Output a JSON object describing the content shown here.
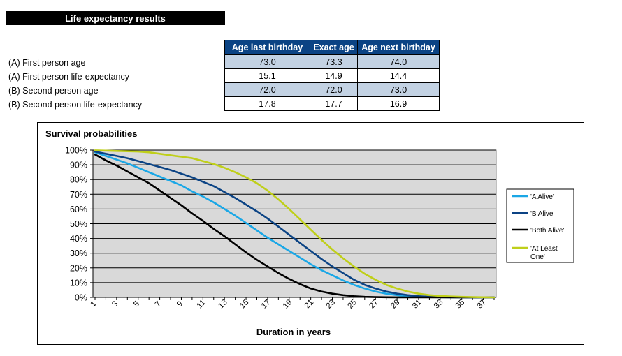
{
  "sheet_title": "Life expectancy results",
  "table": {
    "columns": [
      "Age last birthday",
      "Exact age",
      "Age next birthday"
    ],
    "rows": [
      {
        "label": "(A) First person age",
        "values": [
          "73.0",
          "73.3",
          "74.0"
        ]
      },
      {
        "label": "(A) First person life-expectancy",
        "values": [
          "15.1",
          "14.9",
          "14.4"
        ]
      },
      {
        "label": "(B) Second person age",
        "values": [
          "72.0",
          "72.0",
          "73.0"
        ]
      },
      {
        "label": "(B) Second person life-expectancy",
        "values": [
          "17.8",
          "17.7",
          "16.9"
        ]
      }
    ]
  },
  "colors": {
    "header_bg": "#0b4384",
    "shaded_row": "#c3d2e3",
    "plot_bg": "#d9d9d9"
  },
  "chart_data": {
    "type": "line",
    "title": "Survival probabilities",
    "xlabel": "Duration in years",
    "ylabel": "",
    "x": [
      1,
      2,
      3,
      4,
      5,
      6,
      7,
      8,
      9,
      10,
      11,
      12,
      13,
      14,
      15,
      16,
      17,
      18,
      19,
      20,
      21,
      22,
      23,
      24,
      25,
      26,
      27,
      28,
      29,
      30,
      31,
      32,
      33,
      34,
      35,
      36,
      37,
      38
    ],
    "x_tick_labels": [
      "1",
      "3",
      "5",
      "7",
      "9",
      "11",
      "13",
      "15",
      "17",
      "19",
      "21",
      "23",
      "25",
      "27",
      "29",
      "31",
      "33",
      "35",
      "37"
    ],
    "y_tick_labels": [
      "0%",
      "10%",
      "20%",
      "30%",
      "40%",
      "50%",
      "60%",
      "70%",
      "80%",
      "90%",
      "100%"
    ],
    "ylim": [
      0,
      1
    ],
    "grid": true,
    "legend_position": "right",
    "series": [
      {
        "name": "'A Alive'",
        "color": "#1aa7e6",
        "values": [
          0.985,
          0.96,
          0.935,
          0.91,
          0.88,
          0.85,
          0.82,
          0.79,
          0.76,
          0.72,
          0.685,
          0.645,
          0.6,
          0.555,
          0.505,
          0.455,
          0.405,
          0.36,
          0.315,
          0.27,
          0.225,
          0.185,
          0.15,
          0.115,
          0.085,
          0.06,
          0.04,
          0.025,
          0.015,
          0.008,
          0.004,
          0.002,
          0.001,
          0.0005,
          0.0002,
          0.0001,
          0.0,
          0.0
        ]
      },
      {
        "name": "'B Alive'",
        "color": "#0b4384",
        "values": [
          0.99,
          0.975,
          0.96,
          0.945,
          0.925,
          0.905,
          0.885,
          0.865,
          0.84,
          0.815,
          0.785,
          0.755,
          0.715,
          0.675,
          0.63,
          0.585,
          0.535,
          0.48,
          0.425,
          0.37,
          0.315,
          0.26,
          0.21,
          0.165,
          0.12,
          0.085,
          0.06,
          0.04,
          0.025,
          0.015,
          0.008,
          0.004,
          0.002,
          0.001,
          0.0005,
          0.0002,
          0.0001,
          0.0
        ]
      },
      {
        "name": "'Both Alive'",
        "color": "#000000",
        "values": [
          0.97,
          0.93,
          0.895,
          0.855,
          0.815,
          0.775,
          0.725,
          0.675,
          0.625,
          0.57,
          0.52,
          0.465,
          0.415,
          0.36,
          0.305,
          0.255,
          0.21,
          0.165,
          0.125,
          0.09,
          0.06,
          0.04,
          0.025,
          0.015,
          0.008,
          0.004,
          0.002,
          0.001,
          0.0005,
          0.0002,
          0.0001,
          0.0,
          0.0,
          0.0,
          0.0,
          0.0,
          0.0,
          0.0
        ]
      },
      {
        "name": "'At Least One'",
        "color": "#bfcf1a",
        "values": [
          0.998,
          0.996,
          0.994,
          0.992,
          0.99,
          0.985,
          0.975,
          0.965,
          0.955,
          0.945,
          0.925,
          0.905,
          0.88,
          0.85,
          0.815,
          0.775,
          0.725,
          0.665,
          0.6,
          0.53,
          0.46,
          0.39,
          0.325,
          0.265,
          0.21,
          0.16,
          0.12,
          0.085,
          0.06,
          0.04,
          0.025,
          0.015,
          0.01,
          0.006,
          0.004,
          0.002,
          0.001,
          0.0
        ]
      }
    ]
  }
}
